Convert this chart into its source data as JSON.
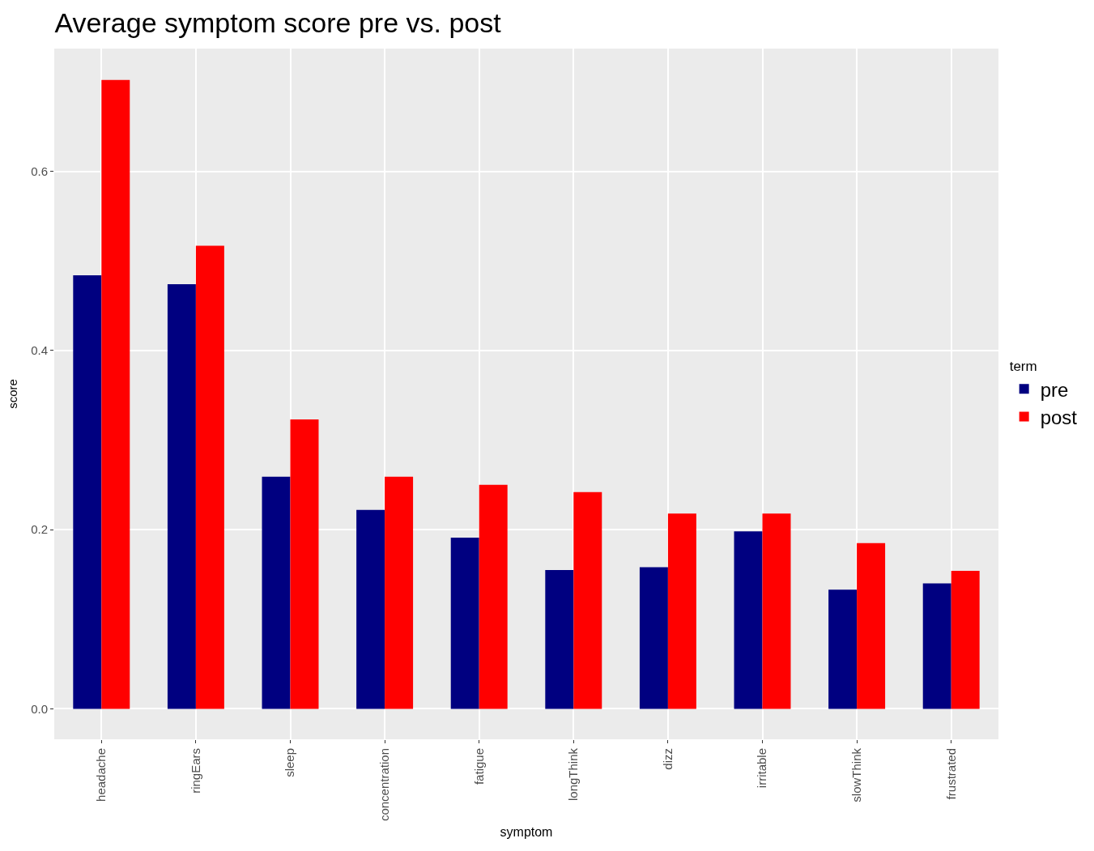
{
  "chart_data": {
    "type": "bar",
    "title": "Average symptom score pre vs. post",
    "xlabel": "symptom",
    "ylabel": "score",
    "legend_title": "term",
    "categories": [
      "headache",
      "ringEars",
      "sleep",
      "concentration",
      "fatigue",
      "longThink",
      "dizz",
      "irritable",
      "slowThink",
      "frustrated"
    ],
    "series": [
      {
        "name": "pre",
        "color": "#000080",
        "values": [
          0.484,
          0.474,
          0.259,
          0.222,
          0.191,
          0.155,
          0.158,
          0.198,
          0.133,
          0.14
        ]
      },
      {
        "name": "post",
        "color": "#ff0000",
        "values": [
          0.702,
          0.517,
          0.323,
          0.259,
          0.25,
          0.242,
          0.218,
          0.218,
          0.185,
          0.154
        ]
      }
    ],
    "ylim": [
      -0.034,
      0.737
    ],
    "yticks": [
      {
        "value": 0,
        "label": "0.0"
      },
      0.2,
      0.4,
      0.6
    ],
    "grid": true,
    "legend": "right"
  }
}
